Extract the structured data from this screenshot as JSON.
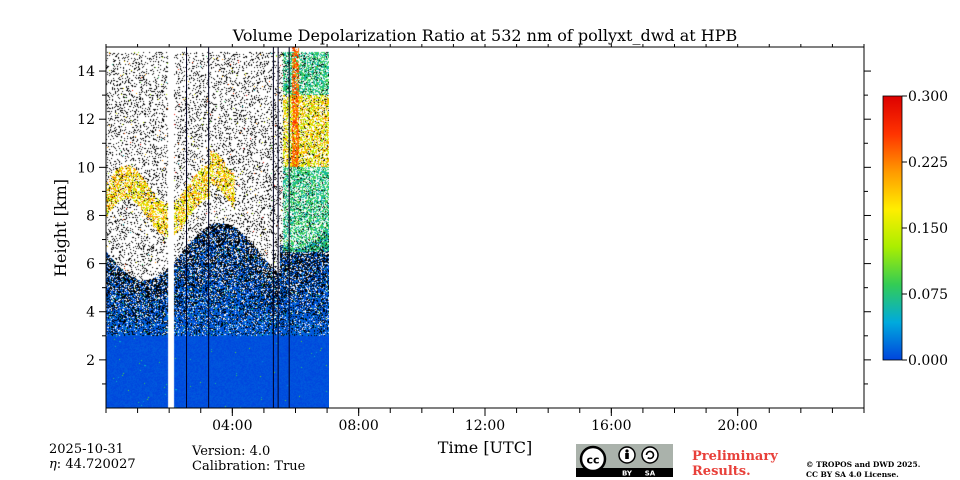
{
  "chart_data": {
    "type": "heatmap",
    "title": "Volume Depolarization Ratio at 532 nm of pollyxt_dwd at HPB",
    "xlabel": "Time [UTC]",
    "ylabel": "Height [km]",
    "xlim_hours": [
      0,
      24
    ],
    "ylim_km": [
      0,
      15
    ],
    "x_ticks": [
      {
        "hour": 4,
        "label": "04:00"
      },
      {
        "hour": 8,
        "label": "08:00"
      },
      {
        "hour": 12,
        "label": "12:00"
      },
      {
        "hour": 16,
        "label": "16:00"
      },
      {
        "hour": 20,
        "label": "20:00"
      }
    ],
    "x_minor_step_hours": 1,
    "y_ticks": [
      2,
      4,
      6,
      8,
      10,
      12,
      14
    ],
    "y_tick_labels": [
      "2",
      "4",
      "6",
      "8",
      "10",
      "12",
      "14"
    ],
    "data_end_hour": 7.05,
    "data_gaps_hours": [
      [
        1.95,
        2.15
      ]
    ],
    "vertical_lines_hours": [
      2.55,
      3.25,
      5.3,
      5.45,
      5.8
    ],
    "colorbar": {
      "min": 0.0,
      "max": 0.3,
      "ticks": [
        "0.000",
        "0.075",
        "0.150",
        "0.225",
        "0.300"
      ],
      "colors": [
        "#0044dd",
        "#00aadd",
        "#33cc55",
        "#aaee00",
        "#ffee00",
        "#ff9900",
        "#ff3300",
        "#dd0000"
      ]
    },
    "features": [
      {
        "name": "boundary_layer",
        "time_hours": [
          0,
          7.05
        ],
        "height_km": [
          0,
          6.5
        ],
        "value": 0.01
      },
      {
        "name": "cirrus_layer",
        "time_hours": [
          0,
          4.1
        ],
        "height_km": [
          7.5,
          10
        ],
        "value": 0.18
      },
      {
        "name": "high_cloud",
        "time_hours": [
          5.6,
          7.05
        ],
        "height_km": [
          10,
          13
        ],
        "value": 0.16
      },
      {
        "name": "aerosol_streak",
        "time_hours": [
          5.9,
          6.1
        ],
        "height_km": [
          10,
          15
        ],
        "value": 0.28
      }
    ]
  },
  "info": {
    "date": "2025-10-31",
    "eta": "44.720027",
    "eta_label": ": ",
    "version": "Version: 4.0",
    "calibration": "Calibration: True",
    "preliminary_line1": "Preliminary",
    "preliminary_line2": "Results.",
    "copyright_line1": "© TROPOS and DWD 2025.",
    "copyright_line2": "CC BY SA 4.0 License."
  },
  "license_badge": {
    "cc": "cc",
    "by": "BY",
    "sa": "SA"
  },
  "colors": {
    "accent": "#e8403a"
  }
}
